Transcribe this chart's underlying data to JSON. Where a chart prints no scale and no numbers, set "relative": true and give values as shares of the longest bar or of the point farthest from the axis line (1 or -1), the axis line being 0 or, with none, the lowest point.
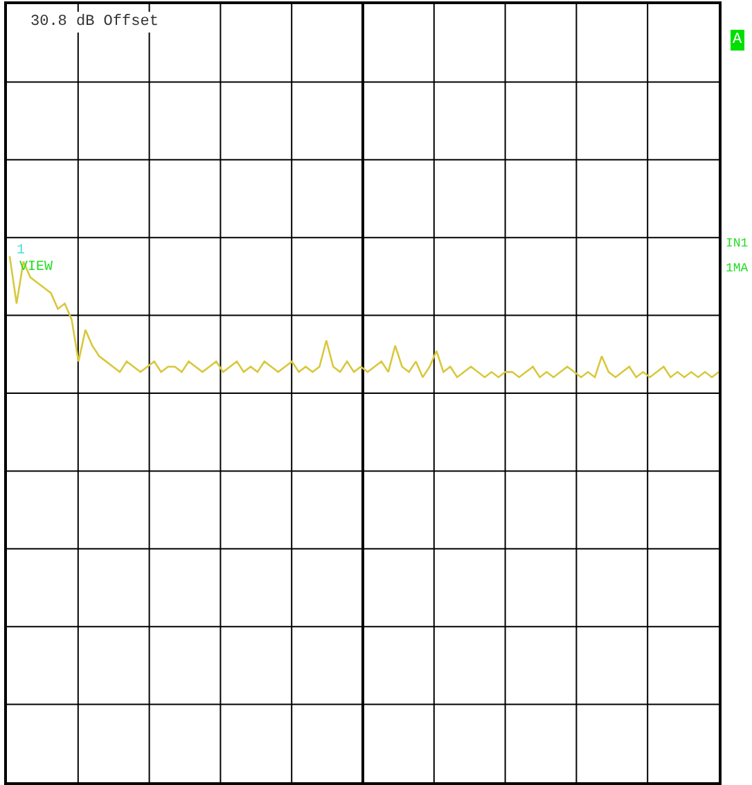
{
  "chart_data": {
    "type": "line",
    "relative": true,
    "grid": true,
    "marker": "none",
    "line_style": "solid",
    "categories": [
      null,
      null,
      null,
      null,
      null,
      null,
      null,
      null,
      null,
      null,
      null,
      null,
      null,
      null,
      null,
      null,
      null,
      null,
      null,
      null,
      null,
      null,
      null,
      null,
      null,
      null,
      null,
      null,
      null,
      null,
      null,
      null,
      null,
      null,
      null,
      null,
      null,
      null,
      null,
      null,
      null,
      null,
      null,
      null,
      null,
      null,
      null,
      null,
      null,
      null,
      null,
      null,
      null,
      null,
      null,
      null,
      null,
      null,
      null,
      null,
      null,
      null,
      null,
      null,
      null,
      null,
      null,
      null,
      null,
      null,
      null,
      null,
      null,
      null,
      null,
      null,
      null,
      null,
      null,
      null,
      null,
      null,
      null,
      null,
      null,
      null,
      null,
      null,
      null,
      null,
      null,
      null,
      null,
      null,
      null,
      null,
      null,
      null,
      null,
      null,
      null,
      null,
      null,
      null
    ],
    "series": [
      {
        "color": "#d8c83c",
        "values": [
          1.0,
          0.91,
          0.99,
          0.96,
          0.95,
          0.94,
          0.93,
          0.9,
          0.91,
          0.88,
          0.8,
          0.86,
          0.83,
          0.81,
          0.8,
          0.79,
          0.78,
          0.8,
          0.79,
          0.78,
          0.79,
          0.8,
          0.78,
          0.79,
          0.79,
          0.78,
          0.8,
          0.79,
          0.78,
          0.79,
          0.8,
          0.78,
          0.79,
          0.8,
          0.78,
          0.79,
          0.78,
          0.8,
          0.79,
          0.78,
          0.79,
          0.8,
          0.78,
          0.79,
          0.78,
          0.79,
          0.84,
          0.79,
          0.78,
          0.8,
          0.78,
          0.79,
          0.78,
          0.79,
          0.8,
          0.78,
          0.83,
          0.79,
          0.78,
          0.8,
          0.77,
          0.79,
          0.82,
          0.78,
          0.79,
          0.77,
          0.78,
          0.79,
          0.78,
          0.77,
          0.78,
          0.77,
          0.78,
          0.78,
          0.77,
          0.78,
          0.79,
          0.77,
          0.78,
          0.77,
          0.78,
          0.79,
          0.78,
          0.77,
          0.78,
          0.77,
          0.81,
          0.78,
          0.77,
          0.78,
          0.79,
          0.77,
          0.78,
          0.77,
          0.78,
          0.79,
          0.77,
          0.78,
          0.77,
          0.78,
          0.77,
          0.78,
          0.77,
          0.78
        ]
      }
    ],
    "annotations": [
      "30.8 dB Offset",
      "A",
      "IN1",
      "1MA",
      "1",
      "VIEW"
    ]
  }
}
